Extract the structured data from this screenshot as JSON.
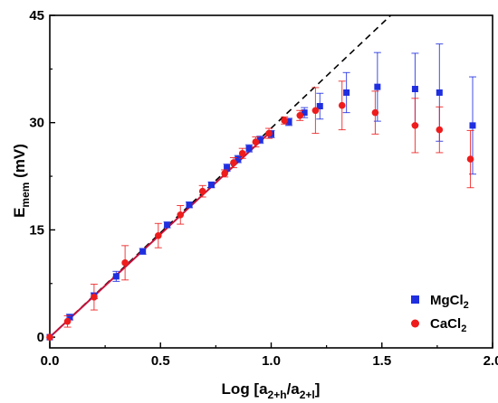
{
  "chart_data": {
    "type": "scatter",
    "xlabel": {
      "main": "Log [a",
      "sub1": "2+h",
      "mid": "/a",
      "sub2": "2+l",
      "end": "]"
    },
    "ylabel": {
      "main": "E",
      "sub": "mem",
      "end": " (mV)"
    },
    "xlim": [
      0.0,
      2.0
    ],
    "ylim": [
      -1.5,
      45
    ],
    "xticks": [
      0.0,
      0.5,
      1.0,
      1.5,
      2.0
    ],
    "xtick_labels": [
      "0.0",
      "0.5",
      "1.0",
      "1.5",
      "2.0"
    ],
    "yticks": [
      0,
      15,
      30,
      45
    ],
    "ytick_labels": [
      "0",
      "15",
      "30",
      "45"
    ],
    "grid": false,
    "legend_position": "bottom-right",
    "series": [
      {
        "name": "MgCl",
        "name_sub": "2",
        "color": "#1f2fe0",
        "marker": "square",
        "points": [
          {
            "x": 0.0,
            "y": 0.0,
            "err": 0.0
          },
          {
            "x": 0.09,
            "y": 2.8,
            "err": 0.4
          },
          {
            "x": 0.2,
            "y": 5.8,
            "err": 0.4
          },
          {
            "x": 0.3,
            "y": 8.5,
            "err": 0.7
          },
          {
            "x": 0.42,
            "y": 12.0,
            "err": 0.4
          },
          {
            "x": 0.53,
            "y": 15.7,
            "err": 0.4
          },
          {
            "x": 0.63,
            "y": 18.5,
            "err": 0.4
          },
          {
            "x": 0.73,
            "y": 21.3,
            "err": 0.4
          },
          {
            "x": 0.8,
            "y": 23.7,
            "err": 0.5
          },
          {
            "x": 0.85,
            "y": 24.9,
            "err": 0.5
          },
          {
            "x": 0.9,
            "y": 26.4,
            "err": 0.5
          },
          {
            "x": 0.95,
            "y": 27.6,
            "err": 0.5
          },
          {
            "x": 1.0,
            "y": 28.4,
            "err": 0.5
          },
          {
            "x": 1.08,
            "y": 30.1,
            "err": 0.5
          },
          {
            "x": 1.15,
            "y": 31.4,
            "err": 0.7
          },
          {
            "x": 1.22,
            "y": 32.3,
            "err": 1.8
          },
          {
            "x": 1.34,
            "y": 34.2,
            "err": 2.8
          },
          {
            "x": 1.48,
            "y": 35.0,
            "err": 4.8
          },
          {
            "x": 1.65,
            "y": 34.7,
            "err": 5.0
          },
          {
            "x": 1.76,
            "y": 34.2,
            "err": 6.8
          },
          {
            "x": 1.91,
            "y": 29.6,
            "err": 6.8
          }
        ]
      },
      {
        "name": "CaCl",
        "name_sub": "2",
        "color": "#ee1c1c",
        "marker": "circle",
        "points": [
          {
            "x": 0.0,
            "y": 0.0,
            "err": 0.0
          },
          {
            "x": 0.08,
            "y": 2.2,
            "err": 0.8
          },
          {
            "x": 0.2,
            "y": 5.6,
            "err": 1.8
          },
          {
            "x": 0.34,
            "y": 10.4,
            "err": 2.4
          },
          {
            "x": 0.49,
            "y": 14.2,
            "err": 1.7
          },
          {
            "x": 0.59,
            "y": 17.1,
            "err": 1.3
          },
          {
            "x": 0.69,
            "y": 20.4,
            "err": 0.8
          },
          {
            "x": 0.79,
            "y": 22.9,
            "err": 0.5
          },
          {
            "x": 0.83,
            "y": 24.4,
            "err": 0.7
          },
          {
            "x": 0.87,
            "y": 25.7,
            "err": 0.7
          },
          {
            "x": 0.93,
            "y": 27.3,
            "err": 0.7
          },
          {
            "x": 0.99,
            "y": 28.5,
            "err": 0.7
          },
          {
            "x": 1.06,
            "y": 30.3,
            "err": 0.5
          },
          {
            "x": 1.13,
            "y": 31.0,
            "err": 0.7
          },
          {
            "x": 1.2,
            "y": 31.7,
            "err": 3.2
          },
          {
            "x": 1.32,
            "y": 32.4,
            "err": 3.4
          },
          {
            "x": 1.47,
            "y": 31.4,
            "err": 3.0
          },
          {
            "x": 1.65,
            "y": 29.6,
            "err": 3.8
          },
          {
            "x": 1.76,
            "y": 29.0,
            "err": 3.2
          },
          {
            "x": 1.9,
            "y": 24.9,
            "err": 4.0
          }
        ]
      }
    ],
    "fit_line": {
      "color": "#c4123a",
      "x0": 0.0,
      "y0": 0.0,
      "x1": 1.0,
      "y1": 28.8
    },
    "theory_line": {
      "color": "#000000",
      "style": "dashed",
      "x0": 0.0,
      "y0": 0.0,
      "x1": 1.54,
      "y1": 45.0
    }
  }
}
